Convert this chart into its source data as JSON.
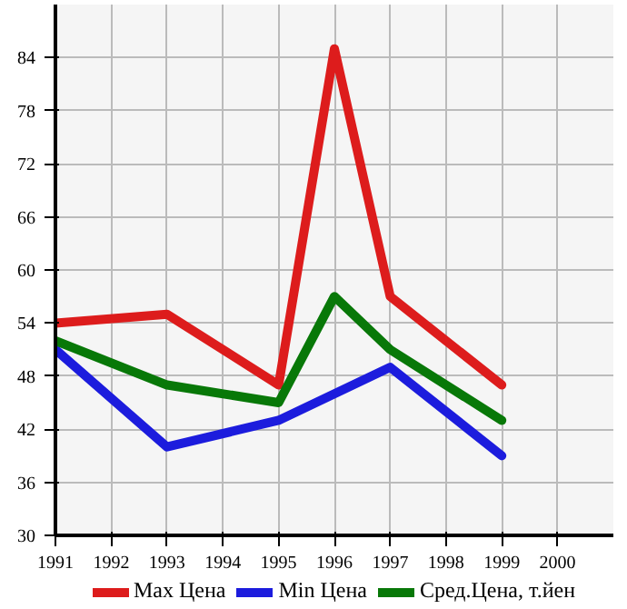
{
  "chart_data": {
    "type": "line",
    "xlim": [
      1991,
      2001
    ],
    "xticks": [
      1991,
      1992,
      1993,
      1994,
      1995,
      1996,
      1997,
      1998,
      1999,
      2000
    ],
    "ylim": [
      30,
      90
    ],
    "yticks": [
      30,
      36,
      42,
      48,
      54,
      60,
      66,
      72,
      78,
      84
    ],
    "grid": true,
    "legend": "bottom",
    "line_style": "solid",
    "marker": "none",
    "series": [
      {
        "name": "Max Цена",
        "color": "#dd1c1c",
        "x": [
          1991,
          1993,
          1995,
          1996,
          1997,
          1999
        ],
        "values": [
          54,
          55,
          47,
          85,
          57,
          47
        ]
      },
      {
        "name": "Min Цена",
        "color": "#1c1cdd",
        "x": [
          1991,
          1993,
          1995,
          1997,
          1999
        ],
        "values": [
          51,
          40,
          43,
          49,
          39
        ]
      },
      {
        "name": "Сред.Цена, т.йен",
        "color": "#087808",
        "x": [
          1991,
          1993,
          1995,
          1996,
          1997,
          1999
        ],
        "values": [
          52,
          47,
          45,
          57,
          51,
          43
        ]
      }
    ]
  }
}
